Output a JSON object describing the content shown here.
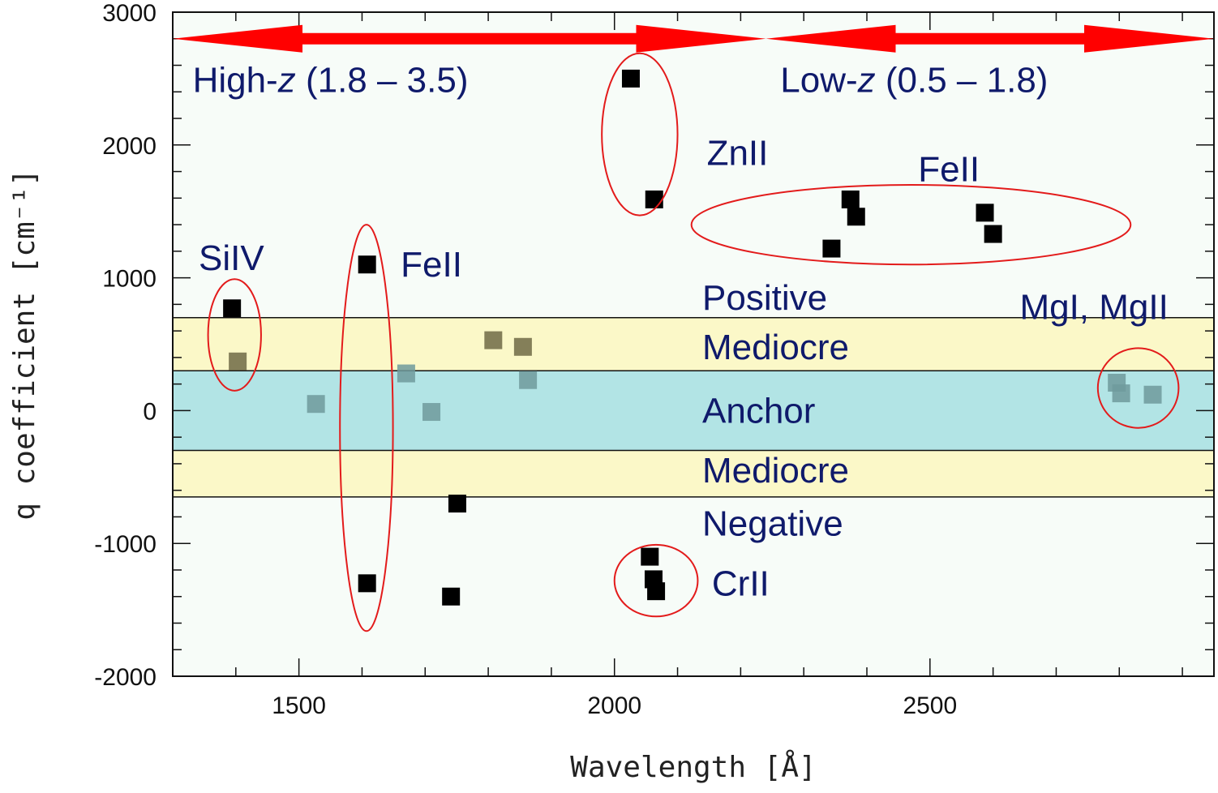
{
  "chart_data": {
    "type": "scatter",
    "title": "",
    "xlabel": "Wavelength [Å]",
    "ylabel": "q coefficient [cm⁻¹]",
    "xlim": [
      1300,
      2950
    ],
    "ylim": [
      -2000,
      3000
    ],
    "x_ticks": [
      1500,
      2000,
      2500
    ],
    "y_ticks": [
      -2000,
      -1000,
      0,
      1000,
      2000,
      3000
    ],
    "grid": false,
    "legend": "none",
    "bands": [
      {
        "name": "Mediocre",
        "from": 300,
        "to": 700,
        "color": "#fbf8c8"
      },
      {
        "name": "Anchor",
        "from": -300,
        "to": 300,
        "color": "#b2e4e5"
      },
      {
        "name": "Mediocre",
        "from": -650,
        "to": -300,
        "color": "#fbf8c8"
      }
    ],
    "band_labels": [
      {
        "text": "Positive",
        "y": 850
      },
      {
        "text": "Mediocre",
        "y": 480
      },
      {
        "text": "Anchor",
        "y": 0
      },
      {
        "text": "Mediocre",
        "y": -450
      },
      {
        "text": "Negative",
        "y": -850
      }
    ],
    "points": [
      {
        "x": 1394,
        "y": 770,
        "style": "dark"
      },
      {
        "x": 1403,
        "y": 370,
        "style": "faded"
      },
      {
        "x": 1527,
        "y": 50,
        "style": "faded"
      },
      {
        "x": 1608,
        "y": 1100,
        "style": "dark"
      },
      {
        "x": 1608,
        "y": -1300,
        "style": "dark"
      },
      {
        "x": 1670,
        "y": 280,
        "style": "faded"
      },
      {
        "x": 1710,
        "y": -10,
        "style": "faded"
      },
      {
        "x": 1741,
        "y": -1400,
        "style": "dark"
      },
      {
        "x": 1751,
        "y": -700,
        "style": "dark"
      },
      {
        "x": 1808,
        "y": 530,
        "style": "faded"
      },
      {
        "x": 1855,
        "y": 480,
        "style": "faded"
      },
      {
        "x": 1863,
        "y": 230,
        "style": "faded"
      },
      {
        "x": 2026,
        "y": 2500,
        "style": "dark"
      },
      {
        "x": 2056,
        "y": -1100,
        "style": "dark"
      },
      {
        "x": 2062,
        "y": -1270,
        "style": "dark"
      },
      {
        "x": 2066,
        "y": -1360,
        "style": "dark"
      },
      {
        "x": 2063,
        "y": 1590,
        "style": "dark"
      },
      {
        "x": 2344,
        "y": 1220,
        "style": "dark"
      },
      {
        "x": 2374,
        "y": 1590,
        "style": "dark"
      },
      {
        "x": 2383,
        "y": 1460,
        "style": "dark"
      },
      {
        "x": 2587,
        "y": 1490,
        "style": "dark"
      },
      {
        "x": 2600,
        "y": 1330,
        "style": "dark"
      },
      {
        "x": 2796,
        "y": 210,
        "style": "faded"
      },
      {
        "x": 2803,
        "y": 130,
        "style": "faded"
      },
      {
        "x": 2853,
        "y": 120,
        "style": "faded"
      }
    ],
    "groups": [
      {
        "label": "SiIV",
        "cx": 1398,
        "cy": 570,
        "rx": 42,
        "ry": 420,
        "label_x": 1393,
        "label_y": 1150
      },
      {
        "label": "FeII",
        "cx": 1607,
        "cy": -130,
        "rx": 42,
        "ry": 1530,
        "label_x": 1710,
        "label_y": 1100
      },
      {
        "label": "ZnII",
        "cx": 2040,
        "cy": 2080,
        "rx": 60,
        "ry": 610,
        "label_x": 2195,
        "label_y": 1940
      },
      {
        "label": "FeII",
        "cx": 2470,
        "cy": 1400,
        "rx": 348,
        "ry": 300,
        "label_x": 2530,
        "label_y": 1820
      },
      {
        "label": "CrII",
        "cx": 2066,
        "cy": -1280,
        "rx": 66,
        "ry": 270,
        "label_x": 2200,
        "label_y": -1300
      },
      {
        "label": "MgI, MgII",
        "cx": 2830,
        "cy": 170,
        "rx": 64,
        "ry": 300,
        "label_x": 2760,
        "label_y": 780
      }
    ],
    "range_arrows": [
      {
        "label": "High-z (1.8 – 3.5)",
        "label_pre": "High-",
        "label_em": "z",
        "label_post": " (1.8 – 3.5)",
        "from": 1300,
        "to": 2240,
        "y": 2800,
        "label_x": 1550,
        "label_y": 2490
      },
      {
        "label": "Low-z (0.5 – 1.8)",
        "label_pre": "Low-",
        "label_em": "z",
        "label_post": " (0.5 – 1.8)",
        "from": 2240,
        "to": 2950,
        "y": 2800,
        "label_x": 2475,
        "label_y": 2490
      }
    ],
    "colors": {
      "dark_marker": "#000000",
      "faded_marker": "#6f9a9c",
      "faded_marker_on_yellow": "#6e6a45",
      "ellipse": "#e31b1b",
      "arrow": "#ff0000",
      "annotation_text": "#0f1a6b"
    }
  }
}
